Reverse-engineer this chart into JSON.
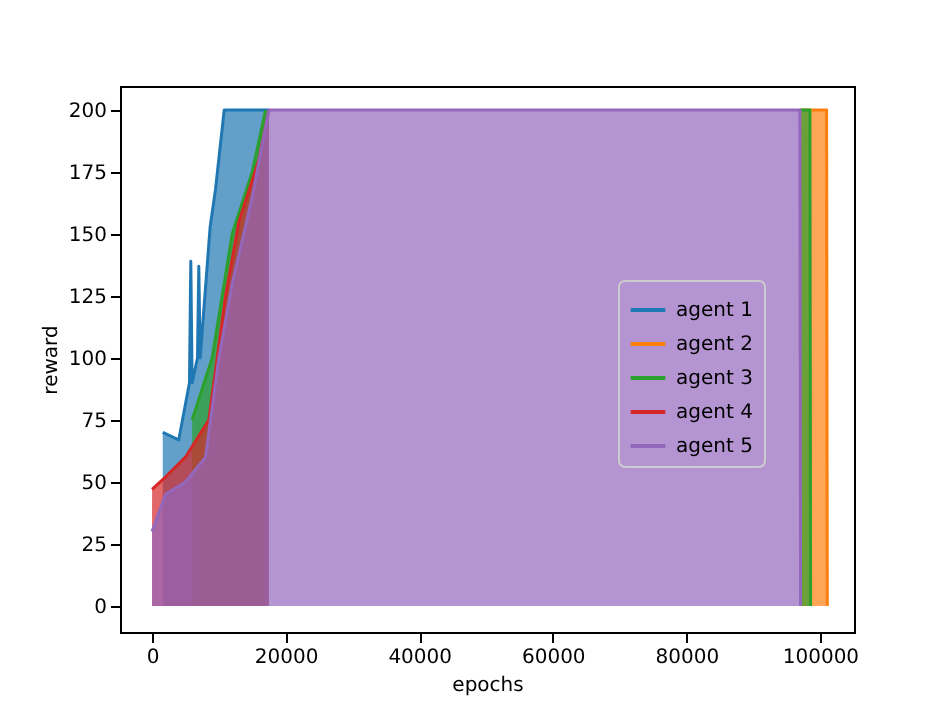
{
  "chart_data": {
    "type": "area",
    "xlabel": "epochs",
    "ylabel": "reward",
    "xlim": [
      -4800,
      105100
    ],
    "ylim": [
      -10.5,
      209.7
    ],
    "xticks": [
      0,
      20000,
      40000,
      60000,
      80000,
      100000
    ],
    "yticks": [
      0,
      25,
      50,
      75,
      100,
      125,
      150,
      175,
      200
    ],
    "grid": false,
    "legend": "right",
    "series": [
      {
        "name": "agent 1",
        "color": "#1f77b4",
        "x": [
          1600,
          4000,
          5600,
          5800,
          6000,
          6800,
          7000,
          7200,
          8700,
          9500,
          10800,
          17500
        ],
        "values": [
          70,
          67,
          90,
          139,
          90,
          100,
          137,
          100,
          153,
          168,
          200,
          200
        ]
      },
      {
        "name": "agent 2",
        "color": "#ff7f0e",
        "x": [
          97000,
          101000,
          101100
        ],
        "values": [
          200,
          200,
          0
        ]
      },
      {
        "name": "agent 3",
        "color": "#2ca02c",
        "x": [
          6000,
          9000,
          12000,
          15000,
          17000,
          50000,
          97000,
          98500,
          98600
        ],
        "values": [
          75,
          100,
          150,
          175,
          200,
          null,
          200,
          200,
          0
        ]
      },
      {
        "name": "agent 4",
        "color": "#d62728",
        "x": [
          0,
          2000,
          5000,
          8500,
          11000,
          13000,
          16000,
          17500
        ],
        "values": [
          47,
          52,
          60,
          75,
          125,
          155,
          180,
          200
        ]
      },
      {
        "name": "agent 5",
        "color": "#9467bd",
        "x": [
          0,
          2000,
          5000,
          8000,
          10000,
          12000,
          15000,
          17500,
          97000,
          97100
        ],
        "values": [
          30,
          45,
          50,
          60,
          100,
          130,
          165,
          200,
          200,
          0
        ]
      }
    ]
  }
}
